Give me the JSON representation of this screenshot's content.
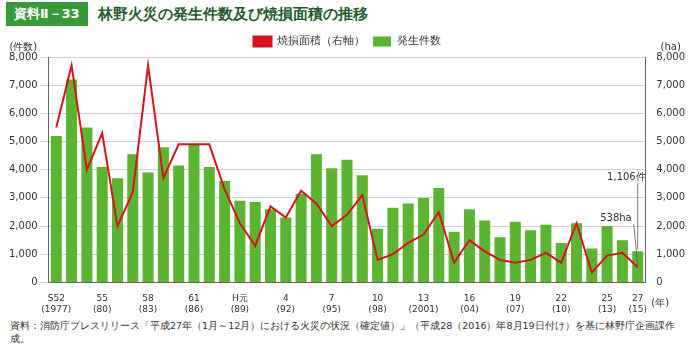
{
  "chart_data": {
    "type": "bar",
    "badge": "資料Ⅱ－33",
    "title": "林野火災の発生件数及び焼損面積の推移",
    "y_label": "(件数)",
    "y2_label": "(ha)",
    "x_label": "(年)",
    "source": "資料：消防庁プレスリリース「平成27年（1月～12月）における火災の状況（確定値）」（平成28（2016）年8月19日付け）を基に林野庁企画課作成。",
    "categories": [
      "S52\n(1977)",
      null,
      null,
      "55\n(80)",
      null,
      null,
      "58\n(83)",
      null,
      null,
      "61\n(86)",
      null,
      null,
      "H元\n(89)",
      null,
      null,
      "4\n(92)",
      null,
      null,
      "7\n(95)",
      null,
      null,
      "10\n(98)",
      null,
      null,
      "13\n(2001)",
      null,
      null,
      "16\n(04)",
      null,
      null,
      "19\n(07)",
      null,
      null,
      "22\n(10)",
      null,
      null,
      "25\n(13)",
      null,
      "27\n(15)"
    ],
    "series": [
      {
        "name": "発生件数",
        "type": "bar",
        "color": "#5cb531",
        "axis": "y",
        "values": [
          5200,
          7200,
          5500,
          4100,
          3700,
          4550,
          3900,
          4800,
          4150,
          4900,
          4100,
          3600,
          2900,
          2850,
          2600,
          2300,
          3150,
          4550,
          4050,
          4350,
          3800,
          1900,
          2650,
          2800,
          3000,
          3350,
          1800,
          2600,
          2200,
          1600,
          2150,
          1850,
          2050,
          1400,
          2100,
          1200,
          2000,
          1500,
          1106
        ]
      },
      {
        "name": "焼損面積（右軸）",
        "type": "line",
        "color": "#d7131f",
        "axis": "y2",
        "marker": "none",
        "line_style": "solid",
        "values": [
          5500,
          7700,
          4000,
          5300,
          2000,
          3200,
          7700,
          3700,
          4900,
          4900,
          4900,
          3300,
          2100,
          1300,
          2700,
          2300,
          3250,
          2800,
          2000,
          2400,
          3100,
          800,
          1000,
          1400,
          1700,
          2500,
          700,
          1500,
          1100,
          800,
          700,
          800,
          1050,
          700,
          2100,
          350,
          950,
          1050,
          538
        ]
      }
    ],
    "ylim": [
      0,
      8000
    ],
    "yticks": [
      0,
      {
        "value": 1000,
        "label": "1,000"
      },
      {
        "value": 2000,
        "label": "2,000"
      },
      {
        "value": 3000,
        "label": "3,000"
      },
      {
        "value": 4000,
        "label": "4,000"
      },
      {
        "value": 5000,
        "label": "5,000"
      },
      {
        "value": 6000,
        "label": "6,000"
      },
      {
        "value": 7000,
        "label": "7,000"
      },
      {
        "value": 8000,
        "label": "8,000"
      }
    ],
    "y2lim": [
      0,
      8000
    ],
    "y2ticks": [
      0,
      {
        "value": 1000,
        "label": "1,000"
      },
      {
        "value": 2000,
        "label": "2,000"
      },
      {
        "value": 3000,
        "label": "3,000"
      },
      {
        "value": 4000,
        "label": "4,000"
      },
      {
        "value": 5000,
        "label": "5,000"
      },
      {
        "value": 6000,
        "label": "6,000"
      },
      {
        "value": 7000,
        "label": "7,000"
      },
      {
        "value": 8000,
        "label": "8,000"
      }
    ],
    "grid": true,
    "legend": "top",
    "annotations": [
      {
        "text": "1,106件",
        "series": "発生件数"
      },
      {
        "text": "538ha",
        "series": "焼損面積（右軸）"
      }
    ]
  }
}
